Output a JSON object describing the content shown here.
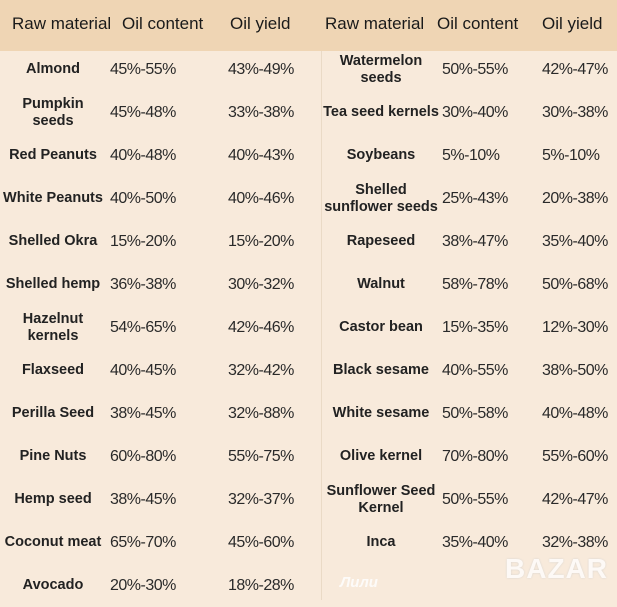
{
  "headers": [
    "Raw material",
    "Oil content",
    "Oil yield",
    "Raw material",
    "Oil content",
    "Oil yield"
  ],
  "left_rows": [
    {
      "name": "Almond",
      "content": "45%-55%",
      "yield": "43%-49%"
    },
    {
      "name": "Pumpkin seeds",
      "content": "45%-48%",
      "yield": "33%-38%"
    },
    {
      "name": "Red Peanuts",
      "content": "40%-48%",
      "yield": "40%-43%"
    },
    {
      "name": "White Peanuts",
      "content": "40%-50%",
      "yield": "40%-46%"
    },
    {
      "name": "Shelled Okra",
      "content": "15%-20%",
      "yield": "15%-20%"
    },
    {
      "name": "Shelled hemp",
      "content": "36%-38%",
      "yield": "30%-32%"
    },
    {
      "name": "Hazelnut kernels",
      "content": "54%-65%",
      "yield": "42%-46%"
    },
    {
      "name": "Flaxseed",
      "content": "40%-45%",
      "yield": "32%-42%"
    },
    {
      "name": "Perilla Seed",
      "content": "38%-45%",
      "yield": "32%-88%"
    },
    {
      "name": "Pine Nuts",
      "content": "60%-80%",
      "yield": "55%-75%"
    },
    {
      "name": "Hemp seed",
      "content": "38%-45%",
      "yield": "32%-37%"
    },
    {
      "name": "Coconut meat",
      "content": "65%-70%",
      "yield": "45%-60%"
    },
    {
      "name": "Avocado",
      "content": "20%-30%",
      "yield": "18%-28%"
    }
  ],
  "right_rows": [
    {
      "name": "Watermelon seeds",
      "content": "50%-55%",
      "yield": "42%-47%"
    },
    {
      "name": "Tea seed kernels",
      "content": "30%-40%",
      "yield": "30%-38%"
    },
    {
      "name": "Soybeans",
      "content": "5%-10%",
      "yield": "5%-10%"
    },
    {
      "name": "Shelled sunflower seeds",
      "content": "25%-43%",
      "yield": "20%-38%"
    },
    {
      "name": "Rapeseed",
      "content": "38%-47%",
      "yield": "35%-40%"
    },
    {
      "name": "Walnut",
      "content": "58%-78%",
      "yield": "50%-68%"
    },
    {
      "name": "Castor bean",
      "content": "15%-35%",
      "yield": "12%-30%"
    },
    {
      "name": "Black sesame",
      "content": "40%-55%",
      "yield": "38%-50%"
    },
    {
      "name": "White sesame",
      "content": "50%-58%",
      "yield": "40%-48%"
    },
    {
      "name": "Olive kernel",
      "content": "70%-80%",
      "yield": "55%-60%"
    },
    {
      "name": "Sunflower Seed Kernel",
      "content": "50%-55%",
      "yield": "42%-47%"
    },
    {
      "name": "Inca",
      "content": "35%-40%",
      "yield": "32%-38%"
    }
  ],
  "watermarks": {
    "top": "Лили",
    "bottom": "BAZAR"
  },
  "colors": {
    "header_bg": "#efd5b4",
    "body_bg": "#f8eadb"
  }
}
